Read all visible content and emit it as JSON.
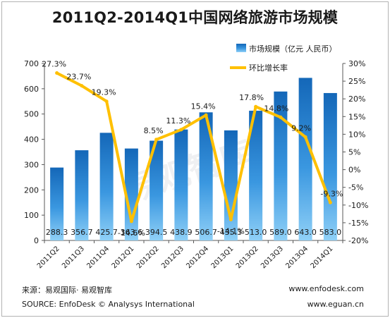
{
  "footer": {
    "source_cn": "来源：易观国际· 易观智库",
    "source_en": "SOURCE: EnfoDesk © Analysys International",
    "site_1": "www.enfodesk.com",
    "site_2": "www.eguan.cn"
  },
  "watermark": "易观智库",
  "chart_data": {
    "type": "bar",
    "title": "2011Q2-2014Q1中国网络旅游市场规模",
    "categories": [
      "2011Q2",
      "2011Q3",
      "2011Q4",
      "2012Q1",
      "2012Q2",
      "2012Q3",
      "2012Q4",
      "2013Q1",
      "2013Q2",
      "2013Q3",
      "2013Q4",
      "2014Q1"
    ],
    "series": [
      {
        "name": "市场规模（亿元 人民币）",
        "type": "bar",
        "axis": "left",
        "values": [
          288.3,
          356.7,
          425.7,
          363.6,
          394.5,
          438.9,
          506.7,
          435.3,
          513.0,
          589.0,
          643.0,
          583.0
        ],
        "labels": [
          "288.3",
          "356.7",
          "425.7",
          "363.6",
          "394.5",
          "438.9",
          "506.7",
          "435.3",
          "513.0",
          "589.0",
          "643.0",
          "583.0"
        ],
        "color": "#1f7fd0"
      },
      {
        "name": "环比增长率",
        "type": "line",
        "axis": "right",
        "values": [
          27.3,
          23.7,
          19.3,
          -14.6,
          8.5,
          11.3,
          15.4,
          -14.1,
          17.8,
          14.8,
          9.2,
          -9.3
        ],
        "labels": [
          "27.3%",
          "23.7%",
          "19.3%",
          "-14.6%",
          "8.5%",
          "11.3%",
          "15.4%",
          "-14.1%",
          "17.8%",
          "14.8%",
          "9.2%",
          "-9.3%"
        ],
        "color": "#ffc000"
      }
    ],
    "y_left": {
      "min": 0,
      "max": 700,
      "ticks": [
        "0",
        "100",
        "200",
        "300",
        "400",
        "500",
        "600",
        "700"
      ]
    },
    "y_right": {
      "min": -20,
      "max": 30,
      "ticks": [
        "-20%",
        "-15%",
        "-10%",
        "-5%",
        "0%",
        "5%",
        "10%",
        "15%",
        "20%",
        "25%",
        "30%"
      ]
    },
    "legend": "top-right",
    "grid": false
  }
}
